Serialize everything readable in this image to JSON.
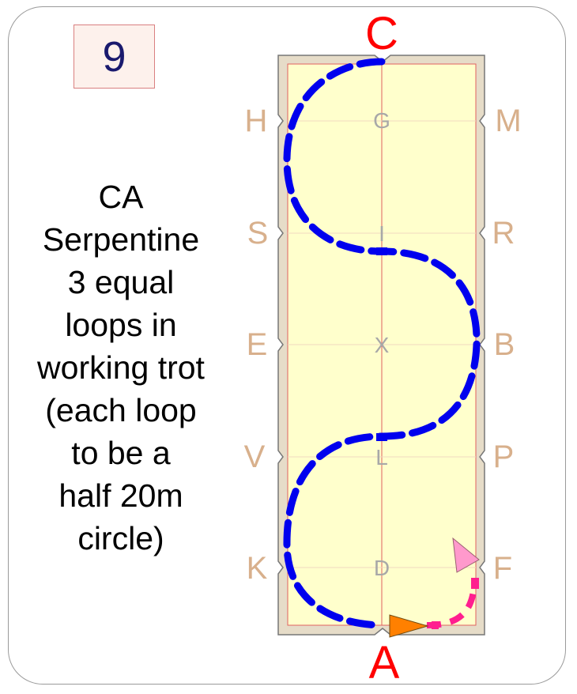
{
  "card": {
    "number": "9",
    "description_lines": [
      "CA",
      "Serpentine",
      "3 equal",
      "loops in",
      "working trot",
      "(each loop",
      "to be a",
      "half 20m",
      "circle)"
    ]
  },
  "arena": {
    "letters": {
      "C": "C",
      "A": "A",
      "H": "H",
      "M": "M",
      "S": "S",
      "R": "R",
      "E": "E",
      "B": "B",
      "V": "V",
      "P": "P",
      "K": "K",
      "F": "F",
      "G": "G",
      "I": "I",
      "X": "X",
      "L": "L",
      "D": "D"
    }
  },
  "colors": {
    "arena_fill": "#ffffcc",
    "arena_border": "#e6dcc8",
    "centerline": "#e06060",
    "track_main": "#0000ee",
    "track_start": "#ff1f8f",
    "arrow_start": "#ff8000",
    "arrow_end": "#ff99cc",
    "number_box_bg": "#fdf1ec",
    "number_box_border": "#d98080"
  }
}
